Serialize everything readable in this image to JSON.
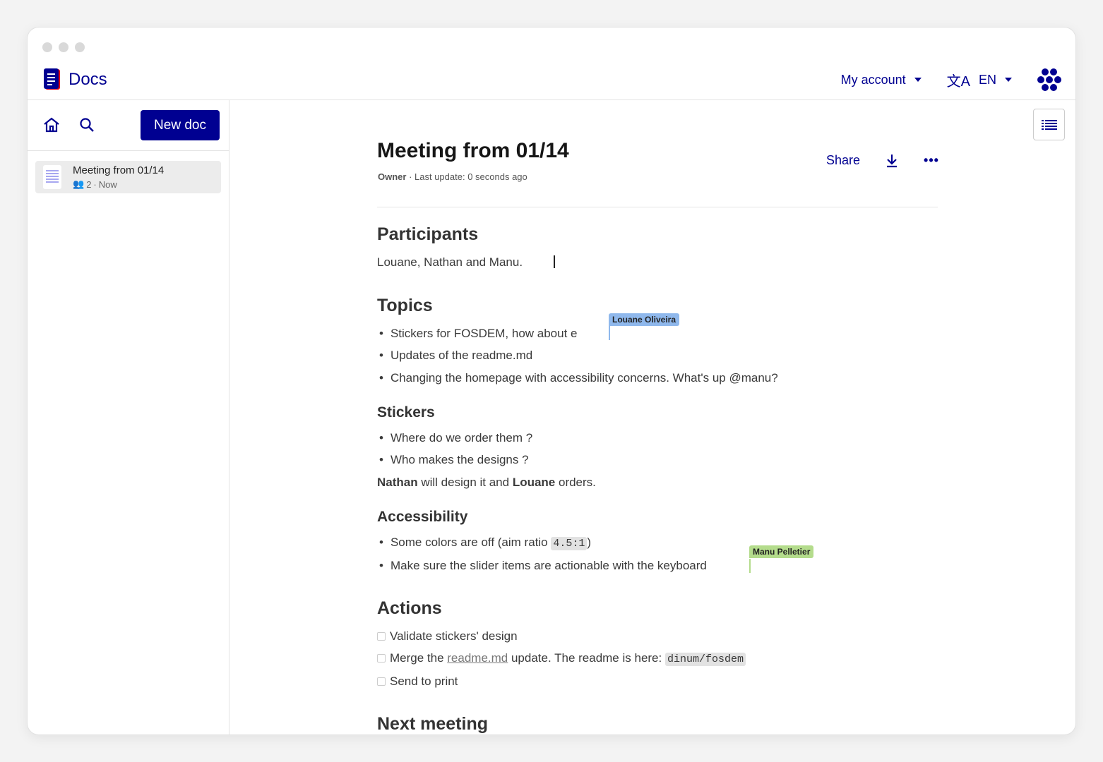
{
  "header": {
    "logo_text": "Docs",
    "account_label": "My account",
    "language_label": "EN"
  },
  "sidebar": {
    "new_doc_label": "New doc",
    "docs": [
      {
        "title": "Meeting from 01/14",
        "participants": "2",
        "time": "Now"
      }
    ]
  },
  "document": {
    "title": "Meeting from 01/14",
    "owner": "Owner",
    "last_update": " · Last update: 0 seconds ago",
    "share_label": "Share",
    "participants_heading": "Participants",
    "participants_text": "Louane, Nathan and Manu.",
    "topics_heading": "Topics",
    "topics": [
      "Stickers for FOSDEM, how about e",
      "Updates of the readme.md",
      "Changing the homepage with accessibility concerns. What's up @manu?"
    ],
    "stickers_heading": "Stickers",
    "stickers": [
      "Where do we order them ?",
      "Who makes the designs ?"
    ],
    "stickers_note": {
      "name1": "Nathan",
      "mid": " will design it and ",
      "name2": "Louane",
      "end": " orders."
    },
    "accessibility_heading": "Accessibility",
    "accessibility": {
      "item1_pre": "Some colors are off (aim ratio ",
      "item1_code": "4.5:1",
      "item1_post": ")",
      "item2": "Make sure the slider items are actionable with the keyboard"
    },
    "actions_heading": "Actions",
    "actions": {
      "a1": "Validate stickers' design",
      "a2_pre": "Merge the ",
      "a2_link": "readme.md",
      "a2_mid": " update. The readme is here: ",
      "a2_code": "dinum/fosdem",
      "a3": "Send to print"
    },
    "next_heading": "Next meeting"
  },
  "collaborators": [
    {
      "name": "Louane Oliveira",
      "color": "#8fb8ec"
    },
    {
      "name": "Manu Pelletier",
      "color": "#b4dc8c"
    }
  ],
  "colors": {
    "brand": "#000091"
  }
}
